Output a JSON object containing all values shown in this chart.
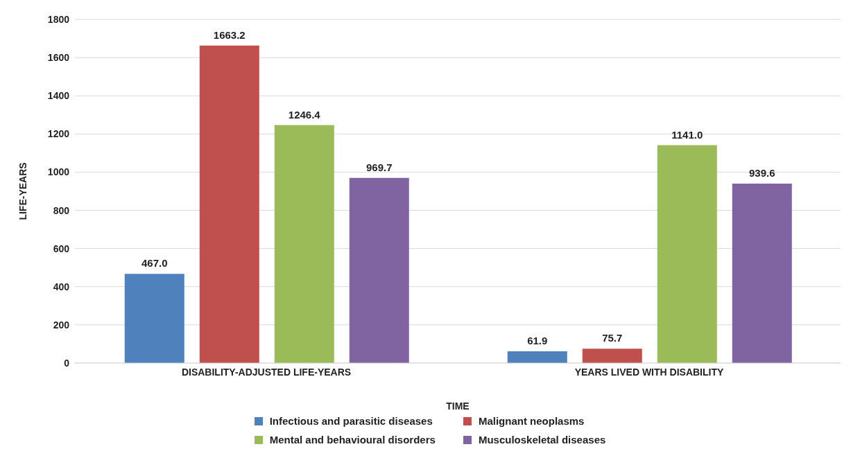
{
  "chart_data": {
    "type": "bar",
    "xlabel": "TIME",
    "ylabel": "LIFE-YEARS",
    "categories": [
      "DISABILITY-ADJUSTED LIFE-YEARS",
      "YEARS LIVED WITH DISABILITY"
    ],
    "series": [
      {
        "name": "Infectious and parasitic diseases",
        "color": "#4f81bd",
        "values": [
          467.0,
          61.9
        ],
        "value_labels": [
          "467.0",
          "61.9"
        ]
      },
      {
        "name": "Malignant neoplasms",
        "color": "#c0504d",
        "values": [
          1663.2,
          75.7
        ],
        "value_labels": [
          "1663.2",
          "75.7"
        ]
      },
      {
        "name": "Mental and behavioural disorders",
        "color": "#9bbb59",
        "values": [
          1246.4,
          1141.0
        ],
        "value_labels": [
          "1246.4",
          "1141.0"
        ]
      },
      {
        "name": "Musculoskeletal diseases",
        "color": "#8064a2",
        "values": [
          969.7,
          939.6
        ],
        "value_labels": [
          "969.7",
          "939.6"
        ]
      }
    ],
    "ylim": [
      0,
      1800
    ],
    "yticks": [
      0,
      200,
      400,
      600,
      800,
      1000,
      1200,
      1400,
      1600,
      1800
    ],
    "grid": "y",
    "legend": "bottom"
  }
}
